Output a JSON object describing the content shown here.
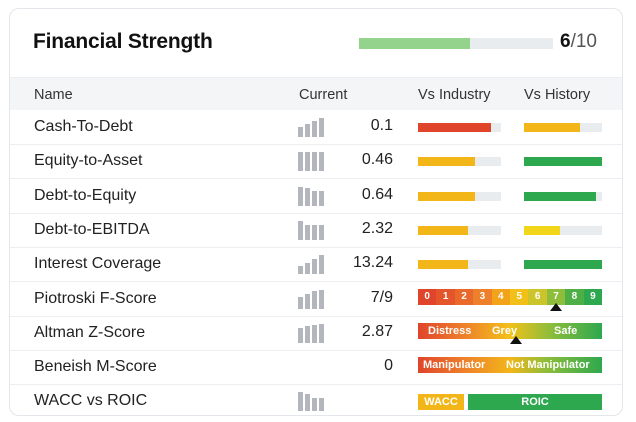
{
  "title": "Financial Strength",
  "score": {
    "value": "6",
    "max": "/10",
    "fraction": 0.57
  },
  "columns": {
    "name": "Name",
    "current": "Current",
    "industry": "Vs Industry",
    "history": "Vs History"
  },
  "rows": [
    {
      "name": "Cash-To-Debt",
      "value": "0.1",
      "spark": [
        0.5,
        0.65,
        0.8,
        0.95
      ],
      "industry": {
        "pct": 0.88,
        "color": "#e0442b"
      },
      "history": {
        "pct": 0.72,
        "color": "#f2b619"
      }
    },
    {
      "name": "Equity-to-Asset",
      "value": "0.46",
      "spark": [
        0.95,
        0.95,
        0.95,
        0.95
      ],
      "industry": {
        "pct": 0.69,
        "color": "#f2b619"
      },
      "history": {
        "pct": 1.0,
        "color": "#2ea84f"
      }
    },
    {
      "name": "Debt-to-Equity",
      "value": "0.64",
      "spark": [
        0.95,
        0.9,
        0.75,
        0.75
      ],
      "industry": {
        "pct": 0.69,
        "color": "#f2b619"
      },
      "history": {
        "pct": 0.92,
        "color": "#2ea84f"
      }
    },
    {
      "name": "Debt-to-EBITDA",
      "value": "2.32",
      "spark": [
        0.95,
        0.75,
        0.75,
        0.75
      ],
      "industry": {
        "pct": 0.6,
        "color": "#f2b619"
      },
      "history": {
        "pct": 0.46,
        "color": "#f2d619"
      }
    },
    {
      "name": "Interest Coverage",
      "value": "13.24",
      "spark": [
        0.4,
        0.55,
        0.75,
        0.95
      ],
      "industry": {
        "pct": 0.6,
        "color": "#f2b619"
      },
      "history": {
        "pct": 1.0,
        "color": "#2ea84f"
      }
    },
    {
      "name": "Piotroski F-Score",
      "value": "7/9",
      "spark": [
        0.6,
        0.75,
        0.9,
        0.95
      ]
    },
    {
      "name": "Altman Z-Score",
      "value": "2.87",
      "spark": [
        0.75,
        0.85,
        0.9,
        0.95
      ]
    },
    {
      "name": "Beneish M-Score",
      "value": "0"
    },
    {
      "name": "WACC vs ROIC",
      "value": "",
      "spark": [
        0.95,
        0.85,
        0.65,
        0.65
      ]
    }
  ],
  "piotroski": {
    "labels": [
      "0",
      "1",
      "2",
      "3",
      "4",
      "5",
      "6",
      "7",
      "8",
      "9"
    ],
    "colors": [
      "#e0442b",
      "#e5552b",
      "#e9692b",
      "#ee802b",
      "#f2a319",
      "#f2c119",
      "#cbc52b",
      "#8dbd3a",
      "#4daf45",
      "#2ea84f"
    ],
    "marker": 7
  },
  "altman": {
    "distress": "Distress",
    "grey": "Grey",
    "safe": "Safe",
    "marker_pct": 0.53
  },
  "beneish": {
    "left": "Manipulator",
    "right": "Not Manipulator"
  },
  "wacc": {
    "wacc": "WACC",
    "roic": "ROIC"
  }
}
